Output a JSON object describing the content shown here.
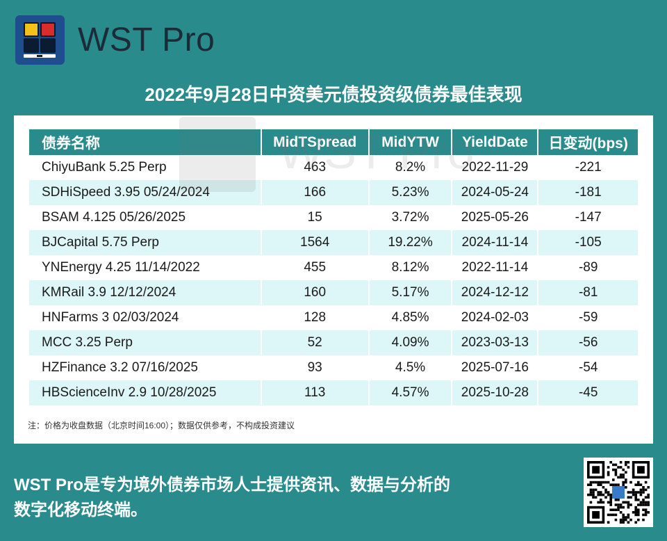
{
  "brand": {
    "name": "WST Pro"
  },
  "title": "2022年9月28日中资美元债投资级债券最佳表现",
  "table": {
    "headers": [
      "债券名称",
      "MidTSpread",
      "MidYTW",
      "YieldDate",
      "日变动(bps)"
    ],
    "rows": [
      [
        "ChiyuBank 5.25 Perp",
        "463",
        "8.2%",
        "2022-11-29",
        "-221"
      ],
      [
        "SDHiSpeed 3.95 05/24/2024",
        "166",
        "5.23%",
        "2024-05-24",
        "-181"
      ],
      [
        "BSAM 4.125 05/26/2025",
        "15",
        "3.72%",
        "2025-05-26",
        "-147"
      ],
      [
        "BJCapital 5.75 Perp",
        "1564",
        "19.22%",
        "2024-11-14",
        "-105"
      ],
      [
        "YNEnergy 4.25 11/14/2022",
        "455",
        "8.12%",
        "2022-11-14",
        "-89"
      ],
      [
        "KMRail 3.9 12/12/2024",
        "160",
        "5.17%",
        "2024-12-12",
        "-81"
      ],
      [
        "HNFarms 3 02/03/2024",
        "128",
        "4.85%",
        "2024-02-03",
        "-59"
      ],
      [
        "MCC 3.25 Perp",
        "52",
        "4.09%",
        "2023-03-13",
        "-56"
      ],
      [
        "HZFinance 3.2 07/16/2025",
        "93",
        "4.5%",
        "2025-07-16",
        "-54"
      ],
      [
        "HBScienceInv 2.9 10/28/2025",
        "113",
        "4.57%",
        "2025-10-28",
        "-45"
      ]
    ]
  },
  "note": "注：价格为收盘数据（北京时间16:00）；数据仅供参考，不构成投资建议",
  "watermark": "WST Pro",
  "footer": {
    "line1": "WST Pro是专为境外债券市场人士提供资讯、数据与分析的",
    "line2": "数字化移动终端。"
  },
  "colors": {
    "background": "#2a8b8d",
    "header": "#2a8b8d",
    "alt_row": "#ddf6f7",
    "logo_bg": "#1e4e8c"
  },
  "icons": {
    "logo": "wst-logo-icon",
    "qr": "qr-code-icon"
  }
}
